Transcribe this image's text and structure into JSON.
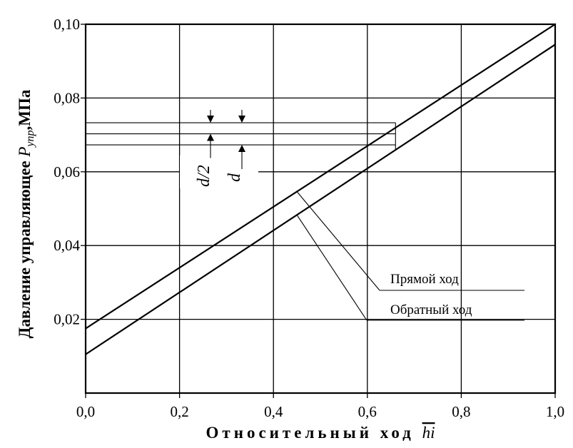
{
  "chart_data": {
    "type": "line",
    "xlabel": "Относительный ход",
    "xlabel_symbol": "hi",
    "ylabel": "Давление управляющее",
    "ylabel_symbol": "P",
    "ylabel_subscript": "упр",
    "ylabel_unit": ",МПа",
    "xlim": [
      0.0,
      1.0
    ],
    "ylim": [
      0.0,
      0.1
    ],
    "xticks": [
      "0,0",
      "0,2",
      "0,4",
      "0,6",
      "0,8",
      "1,0"
    ],
    "yticks": [
      "0,02",
      "0,04",
      "0,06",
      "0,08",
      "0,10"
    ],
    "grid": true,
    "series": [
      {
        "name": "Прямой ход",
        "x": [
          0.0,
          1.0
        ],
        "y": [
          0.0175,
          0.1
        ]
      },
      {
        "name": "Обратный ход",
        "x": [
          0.0,
          1.0
        ],
        "y": [
          0.0105,
          0.0945
        ]
      }
    ],
    "annotations": {
      "d_half_label": "d/2",
      "d_label": "d",
      "band_levels": [
        0.0673,
        0.0703,
        0.0733
      ],
      "band_x_end": 0.66
    }
  }
}
